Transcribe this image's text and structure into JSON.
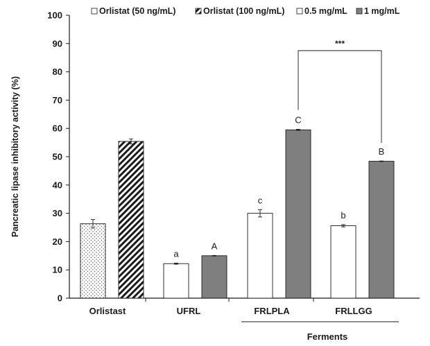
{
  "chart_data": {
    "type": "bar",
    "ylabel": "Pancreatic lipase  inhibitory activity (%)",
    "ylim": [
      0,
      100
    ],
    "yticks": [
      0,
      10,
      20,
      30,
      40,
      50,
      60,
      70,
      80,
      90,
      100
    ],
    "categories": [
      "Orlistast",
      "UFRL",
      "FRLPLA",
      "FRLLGG"
    ],
    "group_label": "Ferments",
    "legend": [
      "Orlistat (50 ng/mL)",
      "Orlistat (100 ng/mL)",
      "0.5 mg/mL",
      "1 mg/mL"
    ],
    "legend_position": "top",
    "bars": [
      {
        "category": "Orlistast",
        "series": "Orlistat (50 ng/mL)",
        "value": 26.3,
        "error": 1.5,
        "label": "",
        "fill": "dots"
      },
      {
        "category": "Orlistast",
        "series": "Orlistat (100 ng/mL)",
        "value": 55.4,
        "error": 0.9,
        "label": "",
        "fill": "hatch"
      },
      {
        "category": "UFRL",
        "series": "0.5 mg/mL",
        "value": 12.2,
        "error": 0.2,
        "label": "a",
        "fill": "white"
      },
      {
        "category": "UFRL",
        "series": "1 mg/mL",
        "value": 15.0,
        "error": 0.1,
        "label": "A",
        "fill": "gray"
      },
      {
        "category": "FRLPLA",
        "series": "0.5 mg/mL",
        "value": 30.0,
        "error": 1.3,
        "label": "c",
        "fill": "white"
      },
      {
        "category": "FRLPLA",
        "series": "1 mg/mL",
        "value": 59.5,
        "error": 0.2,
        "label": "C",
        "fill": "gray"
      },
      {
        "category": "FRLLGG",
        "series": "0.5 mg/mL",
        "value": 25.6,
        "error": 0.4,
        "label": "b",
        "fill": "white"
      },
      {
        "category": "FRLLGG",
        "series": "1 mg/mL",
        "value": 48.4,
        "error": 0.1,
        "label": "B",
        "fill": "gray"
      }
    ],
    "significance": {
      "label": "***",
      "from_bar": 5,
      "to_bar": 7
    },
    "colors": {
      "gray": "#7f7f7f",
      "stroke": "#1a1a1a",
      "white": "#ffffff"
    }
  }
}
